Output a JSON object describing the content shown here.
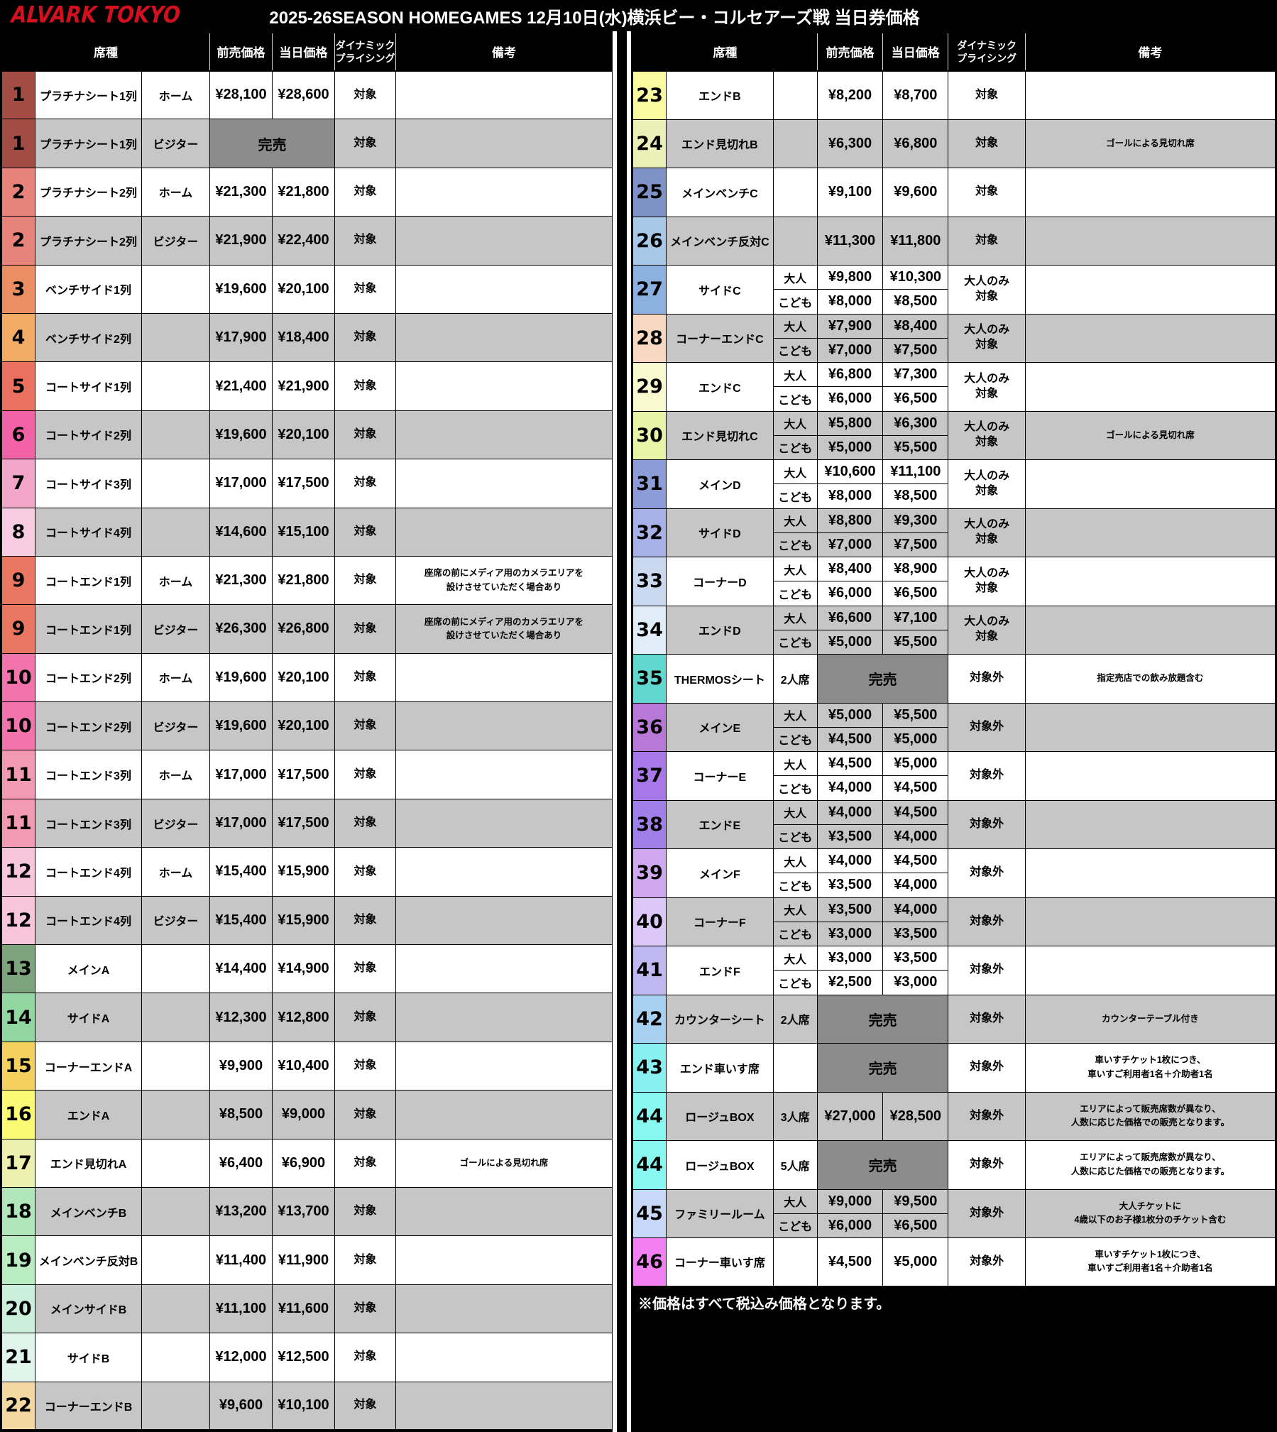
{
  "title_bar": {
    "logo": "ALVARK TOKYO",
    "title": "2025-26SEASON  HOMEGAMES 12月10日(水)横浜ビー・コルセアーズ戦 当日券価格"
  },
  "columns": {
    "seat": "席種",
    "advance": "前売価格",
    "day": "当日価格",
    "dynamic": "ダイナミック\nプライシング",
    "remarks": "備考"
  },
  "labels": {
    "sold_out": "完売",
    "home": "ホーム",
    "visitor": "ビジター",
    "adult": "大人",
    "child": "こども"
  },
  "footer_note": "※価格はすべて税込み価格となります。",
  "colors": {
    "row_shade": "#C6C6C6",
    "sold_out_bg": "#8C8C8C",
    "logo_red": "#D2101E",
    "header_bg": "#000000"
  },
  "left_rows": [
    {
      "num": "1",
      "color": "#A24C44",
      "name": "プラチナシート1列",
      "cat": "ホーム",
      "advance": "¥28,100",
      "day": "¥28,600",
      "dynamic": "対象",
      "remark": ""
    },
    {
      "num": "1",
      "color": "#A24C44",
      "name": "プラチナシート1列",
      "cat": "ビジター",
      "sold_out": true,
      "dynamic": "対象",
      "remark": ""
    },
    {
      "num": "2",
      "color": "#E8837C",
      "name": "プラチナシート2列",
      "cat": "ホーム",
      "advance": "¥21,300",
      "day": "¥21,800",
      "dynamic": "対象",
      "remark": ""
    },
    {
      "num": "2",
      "color": "#E8837C",
      "name": "プラチナシート2列",
      "cat": "ビジター",
      "advance": "¥21,900",
      "day": "¥22,400",
      "dynamic": "対象",
      "remark": ""
    },
    {
      "num": "3",
      "color": "#EC8E64",
      "name": "ベンチサイド1列",
      "cat": "",
      "advance": "¥19,600",
      "day": "¥20,100",
      "dynamic": "対象",
      "remark": ""
    },
    {
      "num": "4",
      "color": "#F2AC66",
      "name": "ベンチサイド2列",
      "cat": "",
      "advance": "¥17,900",
      "day": "¥18,400",
      "dynamic": "対象",
      "remark": ""
    },
    {
      "num": "5",
      "color": "#EA7060",
      "name": "コートサイド1列",
      "cat": "",
      "advance": "¥21,400",
      "day": "¥21,900",
      "dynamic": "対象",
      "remark": ""
    },
    {
      "num": "6",
      "color": "#F162A6",
      "name": "コートサイド2列",
      "cat": "",
      "advance": "¥19,600",
      "day": "¥20,100",
      "dynamic": "対象",
      "remark": ""
    },
    {
      "num": "7",
      "color": "#F2A6CA",
      "name": "コートサイド3列",
      "cat": "",
      "advance": "¥17,000",
      "day": "¥17,500",
      "dynamic": "対象",
      "remark": ""
    },
    {
      "num": "8",
      "color": "#F8CCE2",
      "name": "コートサイド4列",
      "cat": "",
      "advance": "¥14,600",
      "day": "¥15,100",
      "dynamic": "対象",
      "remark": ""
    },
    {
      "num": "9",
      "color": "#E87660",
      "name": "コートエンド1列",
      "cat": "ホーム",
      "advance": "¥21,300",
      "day": "¥21,800",
      "dynamic": "対象",
      "remark": "座席の前にメディア用のカメラエリアを\n設けさせていただく場合あり"
    },
    {
      "num": "9",
      "color": "#E87660",
      "name": "コートエンド1列",
      "cat": "ビジター",
      "advance": "¥26,300",
      "day": "¥26,800",
      "dynamic": "対象",
      "remark": "座席の前にメディア用のカメラエリアを\n設けさせていただく場合あり"
    },
    {
      "num": "10",
      "color": "#F274AC",
      "name": "コートエンド2列",
      "cat": "ホーム",
      "advance": "¥19,600",
      "day": "¥20,100",
      "dynamic": "対象",
      "remark": ""
    },
    {
      "num": "10",
      "color": "#F274AC",
      "name": "コートエンド2列",
      "cat": "ビジター",
      "advance": "¥19,600",
      "day": "¥20,100",
      "dynamic": "対象",
      "remark": ""
    },
    {
      "num": "11",
      "color": "#F29AB4",
      "name": "コートエンド3列",
      "cat": "ホーム",
      "advance": "¥17,000",
      "day": "¥17,500",
      "dynamic": "対象",
      "remark": ""
    },
    {
      "num": "11",
      "color": "#F29AB4",
      "name": "コートエンド3列",
      "cat": "ビジター",
      "advance": "¥17,000",
      "day": "¥17,500",
      "dynamic": "対象",
      "remark": ""
    },
    {
      "num": "12",
      "color": "#F8C6DA",
      "name": "コートエンド4列",
      "cat": "ホーム",
      "advance": "¥15,400",
      "day": "¥15,900",
      "dynamic": "対象",
      "remark": ""
    },
    {
      "num": "12",
      "color": "#F8C6DA",
      "name": "コートエンド4列",
      "cat": "ビジター",
      "advance": "¥15,400",
      "day": "¥15,900",
      "dynamic": "対象",
      "remark": ""
    },
    {
      "num": "13",
      "color": "#7EA47E",
      "name": "メインA",
      "cat": "",
      "advance": "¥14,400",
      "day": "¥14,900",
      "dynamic": "対象",
      "remark": ""
    },
    {
      "num": "14",
      "color": "#92D6A2",
      "name": "サイドA",
      "cat": "",
      "advance": "¥12,300",
      "day": "¥12,800",
      "dynamic": "対象",
      "remark": ""
    },
    {
      "num": "15",
      "color": "#F4D05E",
      "name": "コーナーエンドA",
      "cat": "",
      "advance": "¥9,900",
      "day": "¥10,400",
      "dynamic": "対象",
      "remark": ""
    },
    {
      "num": "16",
      "color": "#FAFA74",
      "name": "エンドA",
      "cat": "",
      "advance": "¥8,500",
      "day": "¥9,000",
      "dynamic": "対象",
      "remark": ""
    },
    {
      "num": "17",
      "color": "#EEF0B0",
      "name": "エンド見切れA",
      "cat": "",
      "advance": "¥6,400",
      "day": "¥6,900",
      "dynamic": "対象",
      "remark": "ゴールによる見切れ席"
    },
    {
      "num": "18",
      "color": "#B0E6BA",
      "name": "メインベンチB",
      "cat": "",
      "advance": "¥13,200",
      "day": "¥13,700",
      "dynamic": "対象",
      "remark": ""
    },
    {
      "num": "19",
      "color": "#BAECC2",
      "name": "メインベンチ反対B",
      "cat": "",
      "advance": "¥11,400",
      "day": "¥11,900",
      "dynamic": "対象",
      "remark": ""
    },
    {
      "num": "20",
      "color": "#CAF0DC",
      "name": "メインサイドB",
      "cat": "",
      "advance": "¥11,100",
      "day": "¥11,600",
      "dynamic": "対象",
      "remark": ""
    },
    {
      "num": "21",
      "color": "#E0F4EC",
      "name": "サイドB",
      "cat": "",
      "advance": "¥12,000",
      "day": "¥12,500",
      "dynamic": "対象",
      "remark": ""
    },
    {
      "num": "22",
      "color": "#F4D8A2",
      "name": "コーナーエンドB",
      "cat": "",
      "advance": "¥9,600",
      "day": "¥10,100",
      "dynamic": "対象",
      "remark": ""
    }
  ],
  "right_rows": [
    {
      "num": "23",
      "color": "#FAFAA0",
      "name": "エンドB",
      "sub": "",
      "advance": "¥8,200",
      "day": "¥8,700",
      "dynamic": "対象",
      "remark": ""
    },
    {
      "num": "24",
      "color": "#EAF0B8",
      "name": "エンド見切れB",
      "sub": "",
      "advance": "¥6,300",
      "day": "¥6,800",
      "dynamic": "対象",
      "remark": "ゴールによる見切れ席"
    },
    {
      "num": "25",
      "color": "#7E92C8",
      "name": "メインベンチC",
      "sub": "",
      "advance": "¥9,100",
      "day": "¥9,600",
      "dynamic": "対象",
      "remark": ""
    },
    {
      "num": "26",
      "color": "#A8C8E8",
      "name": "メインベンチ反対C",
      "sub": "",
      "advance": "¥11,300",
      "day": "¥11,800",
      "dynamic": "対象",
      "remark": ""
    },
    {
      "num": "27",
      "color": "#8CB0E0",
      "name": "サイドC",
      "dynamic": "大人のみ\n対象",
      "remark": "",
      "subs": [
        {
          "label": "大人",
          "advance": "¥9,800",
          "day": "¥10,300"
        },
        {
          "label": "こども",
          "advance": "¥8,000",
          "day": "¥8,500"
        }
      ]
    },
    {
      "num": "28",
      "color": "#F8D8C0",
      "name": "コーナーエンドC",
      "dynamic": "大人のみ\n対象",
      "remark": "",
      "subs": [
        {
          "label": "大人",
          "advance": "¥7,900",
          "day": "¥8,400"
        },
        {
          "label": "こども",
          "advance": "¥7,000",
          "day": "¥7,500"
        }
      ]
    },
    {
      "num": "29",
      "color": "#FAFAD0",
      "name": "エンドC",
      "dynamic": "大人のみ\n対象",
      "remark": "",
      "subs": [
        {
          "label": "大人",
          "advance": "¥6,800",
          "day": "¥7,300"
        },
        {
          "label": "こども",
          "advance": "¥6,000",
          "day": "¥6,500"
        }
      ]
    },
    {
      "num": "30",
      "color": "#E8F4A8",
      "name": "エンド見切れC",
      "dynamic": "大人のみ\n対象",
      "remark": "ゴールによる見切れ席",
      "subs": [
        {
          "label": "大人",
          "advance": "¥5,800",
          "day": "¥6,300"
        },
        {
          "label": "こども",
          "advance": "¥5,000",
          "day": "¥5,500"
        }
      ]
    },
    {
      "num": "31",
      "color": "#8C9CD8",
      "name": "メインD",
      "dynamic": "大人のみ\n対象",
      "remark": "",
      "subs": [
        {
          "label": "大人",
          "advance": "¥10,600",
          "day": "¥11,100"
        },
        {
          "label": "こども",
          "advance": "¥8,000",
          "day": "¥8,500"
        }
      ]
    },
    {
      "num": "32",
      "color": "#A8B0E8",
      "name": "サイドD",
      "dynamic": "大人のみ\n対象",
      "remark": "",
      "subs": [
        {
          "label": "大人",
          "advance": "¥8,800",
          "day": "¥9,300"
        },
        {
          "label": "こども",
          "advance": "¥7,000",
          "day": "¥7,500"
        }
      ]
    },
    {
      "num": "33",
      "color": "#CAD8F0",
      "name": "コーナーD",
      "dynamic": "大人のみ\n対象",
      "remark": "",
      "subs": [
        {
          "label": "大人",
          "advance": "¥8,400",
          "day": "¥8,900"
        },
        {
          "label": "こども",
          "advance": "¥6,000",
          "day": "¥6,500"
        }
      ]
    },
    {
      "num": "34",
      "color": "#E0ECF8",
      "name": "エンドD",
      "dynamic": "大人のみ\n対象",
      "remark": "",
      "subs": [
        {
          "label": "大人",
          "advance": "¥6,600",
          "day": "¥7,100"
        },
        {
          "label": "こども",
          "advance": "¥5,000",
          "day": "¥5,500"
        }
      ]
    },
    {
      "num": "35",
      "color": "#60D8D0",
      "name": "THERMOSシート",
      "sub": "2人席",
      "sold_out": true,
      "dynamic": "対象外",
      "remark": "指定売店での飲み放題含む"
    },
    {
      "num": "36",
      "color": "#B878D8",
      "name": "メインE",
      "dynamic": "対象外",
      "remark": "",
      "subs": [
        {
          "label": "大人",
          "advance": "¥5,000",
          "day": "¥5,500"
        },
        {
          "label": "こども",
          "advance": "¥4,500",
          "day": "¥5,000"
        }
      ]
    },
    {
      "num": "37",
      "color": "#A878E8",
      "name": "コーナーE",
      "dynamic": "対象外",
      "remark": "",
      "subs": [
        {
          "label": "大人",
          "advance": "¥4,500",
          "day": "¥5,000"
        },
        {
          "label": "こども",
          "advance": "¥4,000",
          "day": "¥4,500"
        }
      ]
    },
    {
      "num": "38",
      "color": "#A080E8",
      "name": "エンドE",
      "dynamic": "対象外",
      "remark": "",
      "subs": [
        {
          "label": "大人",
          "advance": "¥4,000",
          "day": "¥4,500"
        },
        {
          "label": "こども",
          "advance": "¥3,500",
          "day": "¥4,000"
        }
      ]
    },
    {
      "num": "39",
      "color": "#D0A8F0",
      "name": "メインF",
      "dynamic": "対象外",
      "remark": "",
      "subs": [
        {
          "label": "大人",
          "advance": "¥4,000",
          "day": "¥4,500"
        },
        {
          "label": "こども",
          "advance": "¥3,500",
          "day": "¥4,000"
        }
      ]
    },
    {
      "num": "40",
      "color": "#DCC8F8",
      "name": "コーナーF",
      "dynamic": "対象外",
      "remark": "",
      "subs": [
        {
          "label": "大人",
          "advance": "¥3,500",
          "day": "¥4,000"
        },
        {
          "label": "こども",
          "advance": "¥3,000",
          "day": "¥3,500"
        }
      ]
    },
    {
      "num": "41",
      "color": "#C0B8F0",
      "name": "エンドF",
      "dynamic": "対象外",
      "remark": "",
      "subs": [
        {
          "label": "大人",
          "advance": "¥3,000",
          "day": "¥3,500"
        },
        {
          "label": "こども",
          "advance": "¥2,500",
          "day": "¥3,000"
        }
      ]
    },
    {
      "num": "42",
      "color": "#A8D0F0",
      "name": "カウンターシート",
      "sub": "2人席",
      "sold_out": true,
      "dynamic": "対象外",
      "remark": "カウンターテーブル付き"
    },
    {
      "num": "43",
      "color": "#88F0F0",
      "name": "エンド車いす席",
      "sub": "",
      "sold_out": true,
      "dynamic": "対象外",
      "remark": "車いすチケット1枚につき、\n車いすご利用者1名＋介助者1名"
    },
    {
      "num": "44",
      "color": "#88F8F0",
      "name": "ロージュBOX",
      "sub": "3人席",
      "advance": "¥27,000",
      "day": "¥28,500",
      "dynamic": "対象外",
      "remark": "エリアによって販売席数が異なり、\n人数に応じた価格での販売となります。"
    },
    {
      "num": "44",
      "color": "#88F8F0",
      "name": "ロージュBOX",
      "sub": "5人席",
      "sold_out": true,
      "dynamic": "対象外",
      "remark": "エリアによって販売席数が異なり、\n人数に応じた価格での販売となります。"
    },
    {
      "num": "45",
      "color": "#C8D8F8",
      "name": "ファミリールーム",
      "dynamic": "対象外",
      "remark": "大人チケットに\n4歳以下のお子様1枚分のチケット含む",
      "subs": [
        {
          "label": "大人",
          "advance": "¥9,000",
          "day": "¥9,500"
        },
        {
          "label": "こども",
          "advance": "¥6,000",
          "day": "¥6,500"
        }
      ]
    },
    {
      "num": "46",
      "color": "#F280F2",
      "name": "コーナー車いす席",
      "sub": "",
      "advance": "¥4,500",
      "day": "¥5,000",
      "dynamic": "対象外",
      "remark": "車いすチケット1枚につき、\n車いすご利用者1名＋介助者1名"
    }
  ]
}
